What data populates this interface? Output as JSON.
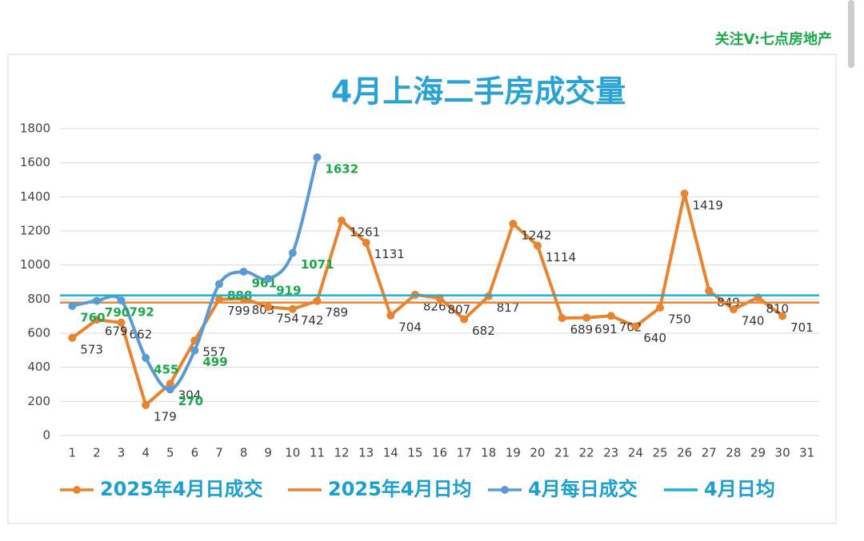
{
  "header": "关注V:七点房地产",
  "chart_data": {
    "type": "line",
    "title": "4月上海二手房成交量",
    "categories": [
      1,
      2,
      3,
      4,
      5,
      6,
      7,
      8,
      9,
      10,
      11,
      12,
      13,
      14,
      15,
      16,
      17,
      18,
      19,
      20,
      21,
      22,
      23,
      24,
      25,
      26,
      27,
      28,
      29,
      30,
      31
    ],
    "ylim": [
      0,
      1800
    ],
    "yticks": [
      0,
      200,
      400,
      600,
      800,
      1000,
      1200,
      1400,
      1600,
      1800
    ],
    "grid": true,
    "legend": "bottom",
    "series": [
      {
        "name": "2025年4月日成交",
        "color": "#e8832f",
        "smooth": false,
        "label_color": "#333333",
        "values": [
          573,
          679,
          662,
          179,
          304,
          557,
          799,
          803,
          754,
          742,
          789,
          1261,
          1131,
          704,
          826,
          807,
          682,
          817,
          1242,
          1114,
          689,
          691,
          702,
          640,
          750,
          1419,
          849,
          740,
          810,
          701,
          null
        ]
      },
      {
        "name": "2025年4月日均",
        "color": "#e8832f",
        "average": 780
      },
      {
        "name": "4月每日成交",
        "color": "#5b9bd5",
        "smooth": true,
        "label_color": "#1aa84a",
        "values": [
          760,
          790,
          792,
          455,
          270,
          499,
          888,
          961,
          919,
          1071,
          1632,
          null,
          null,
          null,
          null,
          null,
          null,
          null,
          null,
          null,
          null,
          null,
          null,
          null,
          null,
          null,
          null,
          null,
          null,
          null,
          null
        ]
      },
      {
        "name": "4月日均",
        "color": "#1ab0d8",
        "average": 822
      }
    ]
  }
}
